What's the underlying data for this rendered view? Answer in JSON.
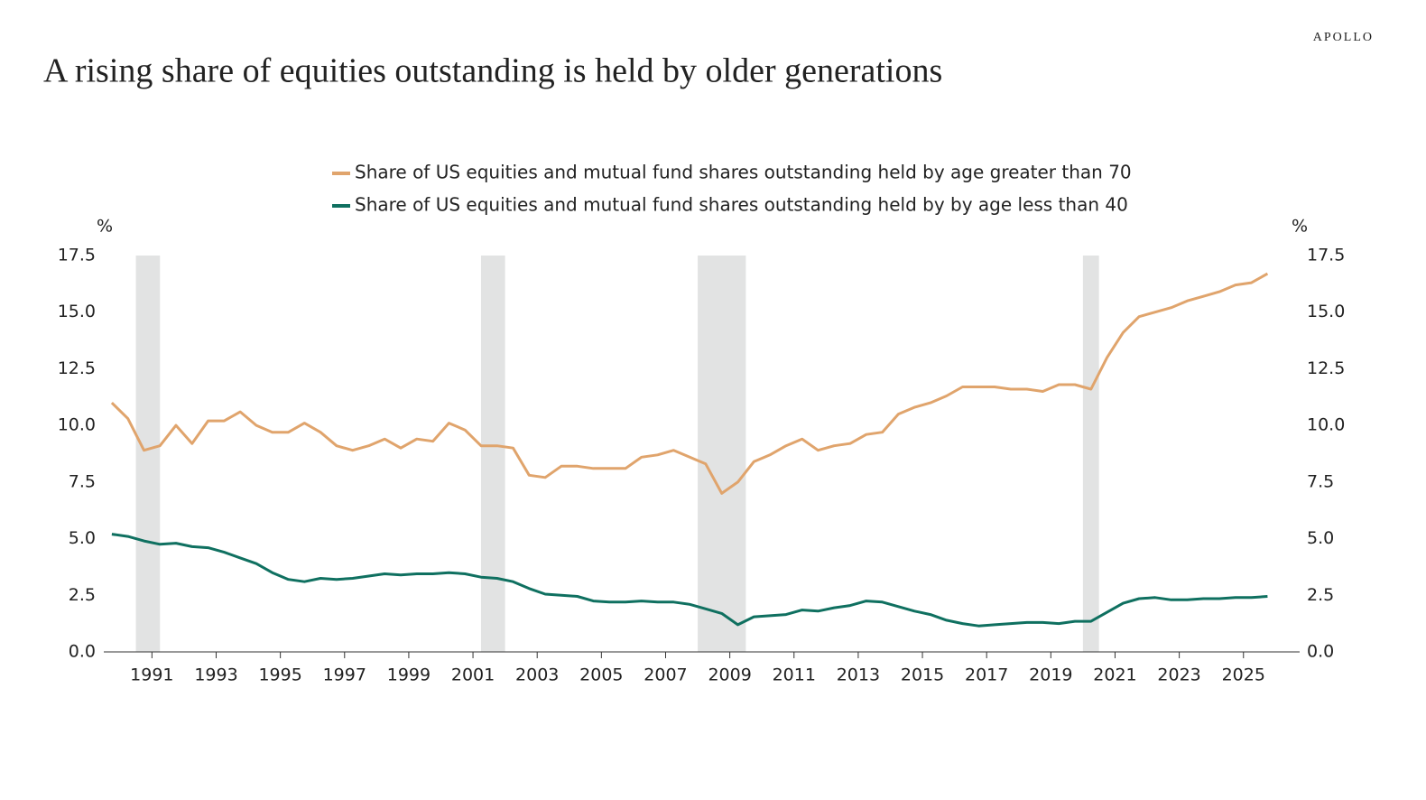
{
  "brand": "APOLLO",
  "chart_data": {
    "type": "line",
    "title": "A rising share of equities outstanding is held by older generations",
    "y_unit": "%",
    "y2_unit": "%",
    "x": [
      1989.75,
      1990.25,
      1990.75,
      1991.25,
      1991.75,
      1992.25,
      1992.75,
      1993.25,
      1993.75,
      1994.25,
      1994.75,
      1995.25,
      1995.75,
      1996.25,
      1996.75,
      1997.25,
      1997.75,
      1998.25,
      1998.75,
      1999.25,
      1999.75,
      2000.25,
      2000.75,
      2001.25,
      2001.75,
      2002.25,
      2002.75,
      2003.25,
      2003.75,
      2004.25,
      2004.75,
      2005.25,
      2005.75,
      2006.25,
      2006.75,
      2007.25,
      2007.75,
      2008.25,
      2008.75,
      2009.25,
      2009.75,
      2010.25,
      2010.75,
      2011.25,
      2011.75,
      2012.25,
      2012.75,
      2013.25,
      2013.75,
      2014.25,
      2014.75,
      2015.25,
      2015.75,
      2016.25,
      2016.75,
      2017.25,
      2017.75,
      2018.25,
      2018.75,
      2019.25,
      2019.75,
      2020.25,
      2020.75,
      2021.25,
      2021.75,
      2022.25,
      2022.75,
      2023.25,
      2023.75,
      2024.25,
      2024.75,
      2025.25,
      2025.75
    ],
    "series": [
      {
        "name": "Share of US equities and mutual fund shares outstanding held by age greater than 70",
        "color": "#e0a46c",
        "values": [
          11.0,
          10.3,
          8.9,
          9.1,
          10.0,
          9.2,
          10.2,
          10.2,
          10.6,
          10.0,
          9.7,
          9.7,
          10.1,
          9.7,
          9.1,
          8.9,
          9.1,
          9.4,
          9.0,
          9.4,
          9.3,
          10.1,
          9.8,
          9.1,
          9.1,
          9.0,
          7.8,
          7.7,
          8.2,
          8.2,
          8.1,
          8.1,
          8.1,
          8.6,
          8.7,
          8.9,
          8.6,
          8.3,
          7.0,
          7.5,
          8.4,
          8.7,
          9.1,
          9.4,
          8.9,
          9.1,
          9.2,
          9.6,
          9.7,
          10.5,
          10.8,
          11.0,
          11.3,
          11.7,
          11.7,
          11.7,
          11.6,
          11.6,
          11.5,
          11.8,
          11.8,
          11.6,
          13.0,
          14.1,
          14.8,
          15.0,
          15.2,
          15.5,
          15.7,
          15.9,
          16.2,
          16.3,
          16.7
        ]
      },
      {
        "name": "Share of US equities and mutual fund shares outstanding held by by age less than 40",
        "color": "#0f7060",
        "values": [
          5.2,
          5.1,
          4.9,
          4.75,
          4.8,
          4.65,
          4.6,
          4.4,
          4.15,
          3.9,
          3.5,
          3.2,
          3.1,
          3.25,
          3.2,
          3.25,
          3.35,
          3.45,
          3.4,
          3.45,
          3.45,
          3.5,
          3.45,
          3.3,
          3.25,
          3.1,
          2.8,
          2.55,
          2.5,
          2.45,
          2.25,
          2.2,
          2.2,
          2.25,
          2.2,
          2.2,
          2.1,
          1.9,
          1.7,
          1.2,
          1.55,
          1.6,
          1.65,
          1.85,
          1.8,
          1.95,
          2.05,
          2.25,
          2.2,
          2.0,
          1.8,
          1.65,
          1.4,
          1.25,
          1.15,
          1.2,
          1.25,
          1.3,
          1.3,
          1.25,
          1.35,
          1.35,
          1.75,
          2.15,
          2.35,
          2.4,
          2.3,
          2.3,
          2.35,
          2.35,
          2.4,
          2.4,
          2.45
        ]
      }
    ],
    "recessions": [
      [
        1990.5,
        1991.25
      ],
      [
        2001.25,
        2002.0
      ],
      [
        2008.0,
        2009.5
      ],
      [
        2020.0,
        2020.5
      ]
    ],
    "recession_color": "#e2e3e3",
    "xlim": [
      1989.5,
      2026.75
    ],
    "xticks": [
      1991,
      1993,
      1995,
      1997,
      1999,
      2001,
      2003,
      2005,
      2007,
      2009,
      2011,
      2013,
      2015,
      2017,
      2019,
      2021,
      2023,
      2025
    ],
    "ylim": [
      0,
      17.5
    ],
    "yticks": [
      {
        "value": 0,
        "label": "0.0"
      },
      2.5,
      {
        "value": 5,
        "label": "5.0"
      },
      7.5,
      {
        "value": 10,
        "label": "10.0"
      },
      12.5,
      {
        "value": 15,
        "label": "15.0"
      },
      17.5
    ],
    "y2lim": [
      0,
      17.5
    ],
    "y2ticks": [
      {
        "value": 0,
        "label": "0.0"
      },
      2.5,
      {
        "value": 5,
        "label": "5.0"
      },
      7.5,
      {
        "value": 10,
        "label": "10.0"
      },
      12.5,
      {
        "value": 15,
        "label": "15.0"
      },
      17.5
    ],
    "grid": false
  }
}
